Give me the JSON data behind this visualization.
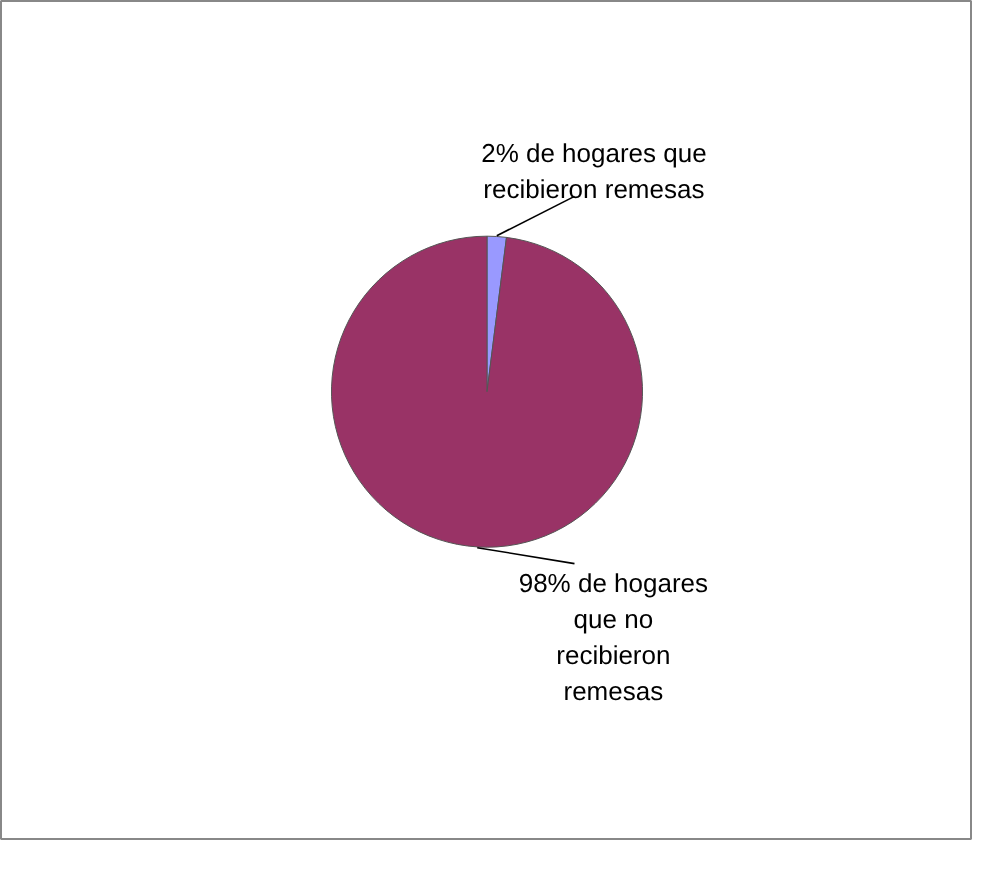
{
  "chart_data": {
    "type": "pie",
    "categories": [
      "de hogares que recibieron remesas",
      "de hogares que no recibieron remesas"
    ],
    "values": [
      2,
      98
    ],
    "value_labels": [
      "2%",
      "98%"
    ],
    "colors": [
      "#9999ff",
      "#993366"
    ]
  }
}
